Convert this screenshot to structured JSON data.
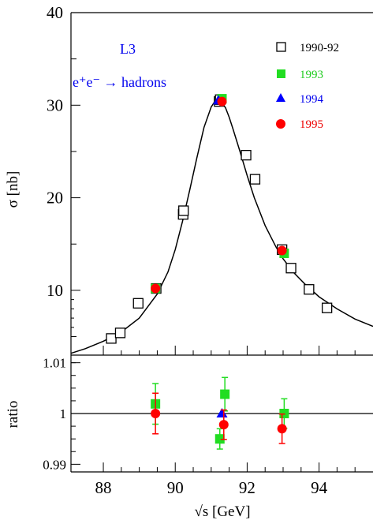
{
  "chart_data": [
    {
      "type": "scatter",
      "experiment_label": "L3",
      "process_label": "e⁺e⁻ → hadrons",
      "ylabel": "σ [nb]",
      "xlim": [
        87.1,
        95.5
      ],
      "ylim": [
        3.0,
        40.0
      ],
      "y_ticks": [
        10,
        20,
        30,
        40
      ],
      "x_ticks": [
        88,
        90,
        92,
        94
      ],
      "legend_position": "top-right",
      "series": [
        {
          "name": "1990-92",
          "marker": "open-square",
          "color": "#000000",
          "x": [
            88.22,
            88.47,
            88.97,
            89.47,
            90.22,
            90.23,
            91.22,
            91.25,
            91.97,
            92.22,
            92.97,
            93.22,
            93.72,
            94.22
          ],
          "y": [
            4.8,
            5.4,
            8.6,
            10.2,
            18.2,
            18.6,
            30.4,
            30.6,
            24.6,
            22.0,
            14.4,
            12.4,
            10.1,
            8.1
          ]
        },
        {
          "name": "1993",
          "marker": "filled-square",
          "color": "#22dd22",
          "x": [
            89.45,
            91.3,
            93.03
          ],
          "y": [
            10.2,
            30.7,
            14.0
          ]
        },
        {
          "name": "1994",
          "marker": "filled-triangle",
          "color": "#0000ff",
          "x": [
            91.2
          ],
          "y": [
            30.5
          ]
        },
        {
          "name": "1995",
          "marker": "filled-circle",
          "color": "#ff0000",
          "x": [
            89.45,
            91.3,
            92.97
          ],
          "y": [
            10.2,
            30.4,
            14.3
          ]
        }
      ],
      "fit_curve": {
        "color": "#000000",
        "x": [
          87.1,
          87.5,
          88.0,
          88.5,
          89.0,
          89.5,
          89.8,
          90.0,
          90.2,
          90.4,
          90.6,
          90.8,
          91.0,
          91.1,
          91.2,
          91.3,
          91.4,
          91.5,
          91.6,
          91.8,
          92.0,
          92.2,
          92.5,
          92.8,
          93.0,
          93.3,
          93.6,
          94.0,
          94.5,
          95.0,
          95.5
        ],
        "y": [
          3.2,
          3.7,
          4.5,
          5.5,
          7.0,
          9.6,
          12.0,
          14.4,
          17.4,
          20.8,
          24.3,
          27.6,
          29.8,
          30.4,
          30.6,
          30.3,
          29.7,
          28.7,
          27.5,
          25.0,
          22.4,
          20.0,
          17.0,
          14.7,
          13.4,
          11.9,
          10.7,
          9.3,
          8.0,
          6.9,
          6.1
        ]
      }
    },
    {
      "type": "scatter",
      "xlabel": "√s [GeV]",
      "ylabel": "ratio",
      "xlim": [
        87.1,
        95.5
      ],
      "ylim": [
        0.9885,
        1.0115
      ],
      "y_ticks": [
        0.99,
        1,
        1.01
      ],
      "y_tick_labels": [
        "0.99",
        "1",
        "1.01"
      ],
      "x_ticks": [
        88,
        90,
        92,
        94
      ],
      "x_tick_labels": [
        "88",
        "90",
        "92",
        "94"
      ],
      "reference_line": 1,
      "series": [
        {
          "name": "1993",
          "marker": "filled-square",
          "color": "#22dd22",
          "x": [
            89.45,
            91.24,
            91.38,
            93.03
          ],
          "y": [
            1.0019,
            0.995,
            1.0038,
            1.0
          ],
          "err": [
            0.004,
            0.002,
            0.0033,
            0.0029
          ]
        },
        {
          "name": "1994",
          "marker": "filled-triangle",
          "color": "#0000ff",
          "x": [
            91.3
          ],
          "y": [
            1.0
          ],
          "err": [
            0.0
          ]
        },
        {
          "name": "1995",
          "marker": "filled-circle",
          "color": "#ff0000",
          "x": [
            89.45,
            91.35,
            92.97
          ],
          "y": [
            1.0,
            0.9978,
            0.997
          ],
          "err": [
            0.004,
            0.0029,
            0.0029
          ]
        }
      ]
    }
  ]
}
